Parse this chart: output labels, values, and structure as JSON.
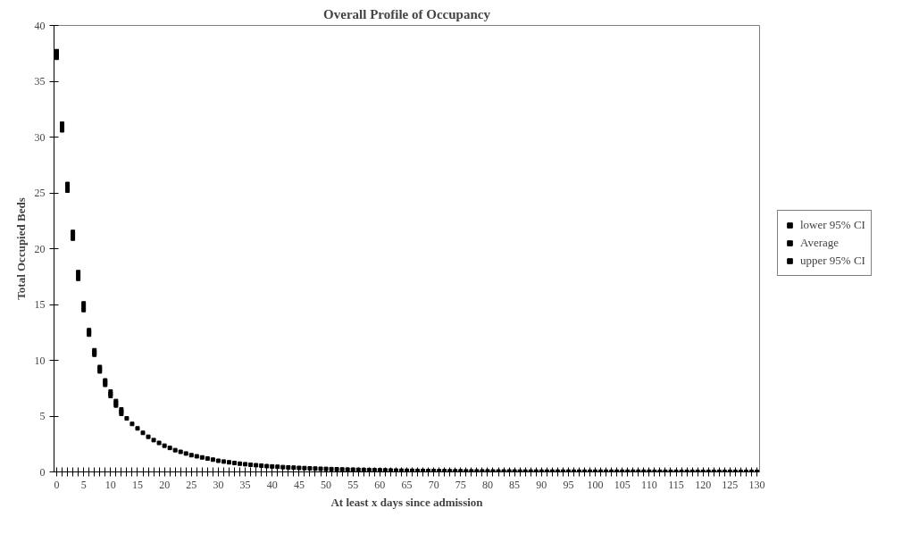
{
  "chart_data": {
    "type": "scatter",
    "title": "Overall Profile of Occupancy",
    "xlabel": "At least x days since admission",
    "ylabel": "Total Occupied Beds",
    "categories": [
      "0",
      null,
      null,
      null,
      null,
      "5",
      null,
      null,
      null,
      null,
      "10",
      null,
      null,
      null,
      null,
      "15",
      null,
      null,
      null,
      null,
      "20",
      null,
      null,
      null,
      null,
      "25",
      null,
      null,
      null,
      null,
      "30",
      null,
      null,
      null,
      null,
      "35",
      null,
      null,
      null,
      null,
      "40",
      null,
      null,
      null,
      null,
      "45",
      null,
      null,
      null,
      null,
      "50",
      null,
      null,
      null,
      null,
      "55",
      null,
      null,
      null,
      null,
      "60",
      null,
      null,
      null,
      null,
      "65",
      null,
      null,
      null,
      null,
      "70",
      null,
      null,
      null,
      null,
      "75",
      null,
      null,
      null,
      null,
      "80",
      null,
      null,
      null,
      null,
      "85",
      null,
      null,
      null,
      null,
      "90",
      null,
      null,
      null,
      null,
      "95",
      null,
      null,
      null,
      null,
      "100",
      null,
      null,
      null,
      null,
      "105",
      null,
      null,
      null,
      null,
      "110",
      null,
      null,
      null,
      null,
      "115",
      null,
      null,
      null,
      null,
      "120",
      null,
      null,
      null,
      null,
      "125",
      null,
      null,
      null,
      null,
      "130"
    ],
    "series": [
      {
        "name": "lower 95% CI",
        "color": "#000000",
        "values": [
          37.1,
          30.6,
          25.2,
          20.9,
          17.3,
          14.5,
          12.3,
          10.5,
          9.0,
          7.8,
          6.8,
          5.95,
          5.2,
          null,
          null,
          null,
          null,
          null,
          null,
          null,
          null,
          null,
          null,
          null,
          null,
          null,
          null,
          null,
          null,
          null,
          null,
          null,
          null,
          null,
          null,
          null,
          null,
          null,
          null,
          null,
          null,
          null,
          null,
          null,
          null,
          null,
          null,
          null,
          null,
          null,
          null,
          null,
          null,
          null,
          null,
          null,
          null,
          null,
          null,
          null,
          null,
          null,
          null,
          null,
          null,
          null,
          null,
          null,
          null,
          null,
          null,
          null,
          null,
          null,
          null,
          null,
          null,
          null,
          null,
          null,
          null,
          null,
          null,
          null,
          null,
          null,
          null,
          null,
          null,
          null,
          null,
          null,
          null,
          null,
          null,
          null,
          null,
          null,
          null,
          null,
          null,
          null,
          null,
          null,
          null,
          null,
          null,
          null,
          null,
          null,
          null,
          null,
          null,
          null,
          null,
          null,
          null,
          null,
          null,
          null,
          null,
          null,
          null,
          null,
          null,
          null,
          null,
          null,
          null,
          null,
          null
        ]
      },
      {
        "name": "Average",
        "color": "#000000",
        "values": [
          37.4,
          30.9,
          25.5,
          21.2,
          17.6,
          14.8,
          12.5,
          10.7,
          9.2,
          8.0,
          7.0,
          6.15,
          5.4,
          4.8,
          4.3,
          3.9,
          3.5,
          3.15,
          2.85,
          2.6,
          2.35,
          2.15,
          1.95,
          1.8,
          1.65,
          1.5,
          1.4,
          1.3,
          1.2,
          1.1,
          1.0,
          0.93,
          0.86,
          0.8,
          0.74,
          0.69,
          0.64,
          0.6,
          0.56,
          0.52,
          0.49,
          0.46,
          0.43,
          0.4,
          0.38,
          0.36,
          0.34,
          0.32,
          0.3,
          0.28,
          0.27,
          0.25,
          0.24,
          0.22,
          0.21,
          0.2,
          0.19,
          0.18,
          0.17,
          0.16,
          0.15,
          0.14,
          0.13,
          0.12,
          0.11,
          0.1,
          0.1,
          0.09,
          0.09,
          0.08,
          0.08,
          0.07,
          0.07,
          0.06,
          0.06,
          0.06,
          0.05,
          0.05,
          0.05,
          0.05,
          0.05,
          0.04,
          0.04,
          0.04,
          0.04,
          0.04,
          0.03,
          0.03,
          0.03,
          0.03,
          0.03,
          0.03,
          0.03,
          0.03,
          0.03,
          0.03,
          0.02,
          0.02,
          0.02,
          0.02,
          0.02,
          0.02,
          0.02,
          0.02,
          0.02,
          0.02,
          0.02,
          0.02,
          0.02,
          0.02,
          0.02,
          0.01,
          0.01,
          0.01,
          0.01,
          0.01,
          0.01,
          0.01,
          0.01,
          0.01,
          0.01,
          0.01,
          0.01,
          0.01,
          0.01,
          0.01,
          0.01,
          0.01,
          0.01,
          0.01,
          0.01
        ]
      },
      {
        "name": "upper 95% CI",
        "color": "#000000",
        "values": [
          37.7,
          31.2,
          25.8,
          21.5,
          17.9,
          15.1,
          12.7,
          10.9,
          9.4,
          8.2,
          7.2,
          6.35,
          5.6,
          null,
          null,
          null,
          null,
          null,
          null,
          null,
          null,
          null,
          null,
          null,
          null,
          null,
          null,
          null,
          null,
          null,
          null,
          null,
          null,
          null,
          null,
          null,
          null,
          null,
          null,
          null,
          null,
          null,
          null,
          null,
          null,
          null,
          null,
          null,
          null,
          null,
          null,
          null,
          null,
          null,
          null,
          null,
          null,
          null,
          null,
          null,
          null,
          null,
          null,
          null,
          null,
          null,
          null,
          null,
          null,
          null,
          null,
          null,
          null,
          null,
          null,
          null,
          null,
          null,
          null,
          null,
          null,
          null,
          null,
          null,
          null,
          null,
          null,
          null,
          null,
          null,
          null,
          null,
          null,
          null,
          null,
          null,
          null,
          null,
          null,
          null,
          null,
          null,
          null,
          null,
          null,
          null,
          null,
          null,
          null,
          null,
          null,
          null,
          null,
          null,
          null,
          null,
          null,
          null,
          null,
          null,
          null,
          null,
          null,
          null,
          null,
          null,
          null,
          null,
          null,
          null,
          null
        ]
      }
    ],
    "ylim": [
      0,
      40
    ],
    "yticks": [
      0,
      5,
      10,
      15,
      20,
      25,
      30,
      35,
      40
    ],
    "grid": false,
    "legend": "right",
    "marker": "square"
  }
}
